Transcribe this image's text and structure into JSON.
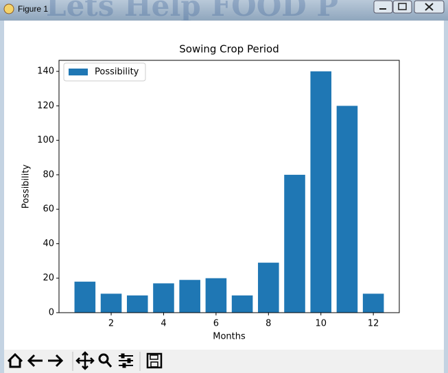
{
  "window_title": "Figure 1",
  "background_text": "Lets Help FOOD P",
  "chart_data": {
    "type": "bar",
    "title": "Sowing Crop Period",
    "xlabel": "Months",
    "ylabel": "Possibility",
    "x": [
      1,
      2,
      3,
      4,
      5,
      6,
      7,
      8,
      9,
      10,
      11,
      12
    ],
    "series": [
      {
        "name": "Possibility",
        "color": "#1f77b4",
        "values": [
          18,
          11,
          10,
          17,
          19,
          20,
          10,
          29,
          80,
          140,
          120,
          11
        ]
      }
    ],
    "xlim": [
      0.01,
      12.99
    ],
    "ylim": [
      0,
      146.4
    ],
    "xticks": [
      2,
      4,
      6,
      8,
      10,
      12
    ],
    "yticks": [
      0,
      20,
      40,
      60,
      80,
      100,
      120,
      140
    ],
    "legend": "upper left",
    "grid": false
  }
}
